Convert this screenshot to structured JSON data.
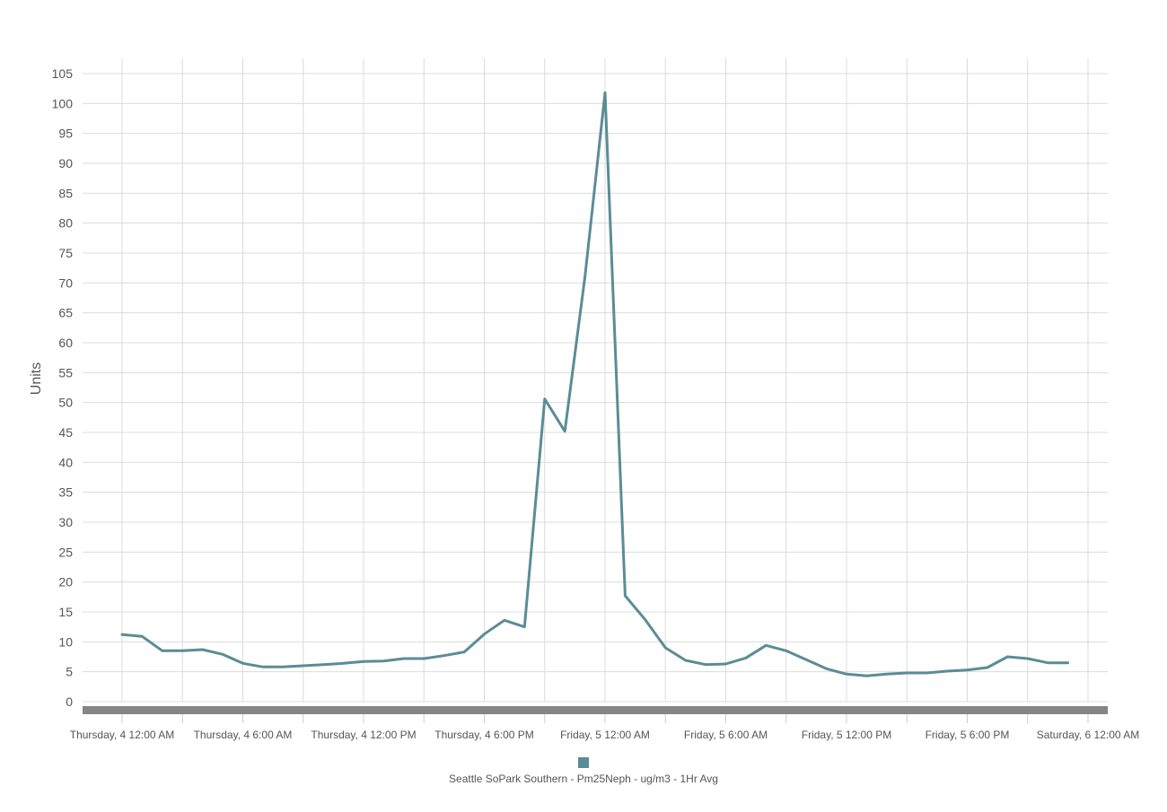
{
  "chart_data": {
    "type": "line",
    "ylabel": "Units",
    "ylim": [
      0,
      105
    ],
    "y_tick_step": 5,
    "y_ticks": [
      "0",
      "5",
      "10",
      "15",
      "20",
      "25",
      "30",
      "35",
      "40",
      "45",
      "50",
      "55",
      "60",
      "65",
      "70",
      "75",
      "80",
      "85",
      "90",
      "95",
      "100",
      "105"
    ],
    "x_labels": [
      "Thursday, 4 12:00 AM",
      "Thursday, 4 6:00 AM",
      "Thursday, 4 12:00 PM",
      "Thursday, 4 6:00 PM",
      "Friday, 5 12:00 AM",
      "Friday, 5 6:00 AM",
      "Friday, 5 12:00 PM",
      "Friday, 5 6:00 PM",
      "Saturday, 6 12:00 AM"
    ],
    "x_range_hours": [
      0,
      48
    ],
    "grid": true,
    "legend_position": "bottom-center",
    "series": [
      {
        "name": "Seattle SoPark Southern - Pm25Neph - ug/m3 - 1Hr Avg",
        "color": "#5b8c96",
        "x_hours": [
          0,
          1,
          2,
          3,
          4,
          5,
          6,
          7,
          8,
          9,
          10,
          11,
          12,
          13,
          14,
          15,
          16,
          17,
          18,
          19,
          20,
          21,
          22,
          23,
          24,
          25,
          26,
          27,
          28,
          29,
          30,
          31,
          32,
          33,
          34,
          35,
          36,
          37,
          38,
          39,
          40,
          41,
          42,
          43,
          44,
          45,
          46,
          47
        ],
        "values": [
          11.2,
          10.9,
          8.5,
          8.5,
          8.7,
          7.9,
          6.4,
          5.8,
          5.8,
          6.0,
          6.2,
          6.4,
          6.7,
          6.8,
          7.2,
          7.2,
          7.7,
          8.3,
          11.3,
          13.6,
          12.5,
          50.6,
          45.2,
          71.0,
          101.8,
          17.7,
          13.7,
          9.0,
          6.9,
          6.2,
          6.3,
          7.3,
          9.4,
          8.5,
          7.0,
          5.5,
          4.6,
          4.3,
          4.6,
          4.8,
          4.8,
          5.1,
          5.3,
          5.7,
          7.5,
          7.2,
          6.5,
          6.5
        ]
      }
    ]
  }
}
